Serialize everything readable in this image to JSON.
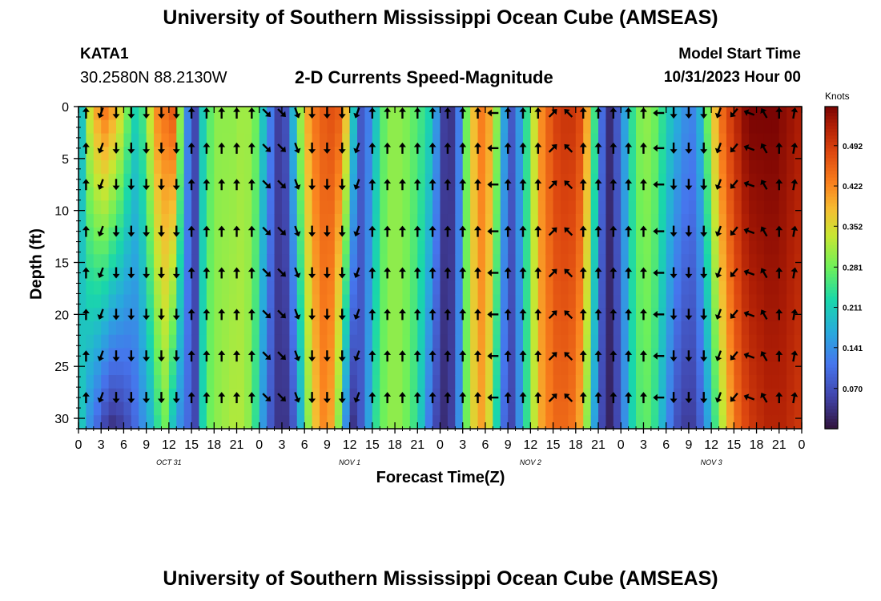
{
  "header": {
    "title": "University of Southern Mississippi Ocean Cube (AMSEAS)",
    "station": "KATA1",
    "coordinates": "30.2580N  88.2130W",
    "subtitle": "2-D Currents Speed-Magnitude",
    "model_start_label": "Model Start Time",
    "model_start_value": "10/31/2023 Hour 00"
  },
  "footer": {
    "title": "University of Southern Mississippi Ocean Cube (AMSEAS)"
  },
  "chart_data": {
    "type": "heatmap",
    "title": "2-D Currents Speed-Magnitude",
    "xlabel": "Forecast Time(Z)",
    "ylabel": "Depth (ft)",
    "xlim": [
      0,
      96
    ],
    "ylim": [
      31,
      0
    ],
    "x_tick_values": [
      0,
      3,
      6,
      9,
      12,
      15,
      18,
      21,
      24,
      27,
      30,
      33,
      36,
      39,
      42,
      45,
      48,
      51,
      54,
      57,
      60,
      63,
      66,
      69,
      72,
      75,
      78,
      81,
      84,
      87,
      90,
      93,
      96
    ],
    "x_tick_labels": [
      "0",
      "3",
      "6",
      "9",
      "12",
      "15",
      "18",
      "21",
      "0",
      "3",
      "6",
      "9",
      "12",
      "15",
      "18",
      "21",
      "0",
      "3",
      "6",
      "9",
      "12",
      "15",
      "18",
      "21",
      "0",
      "3",
      "6",
      "9",
      "12",
      "15",
      "18",
      "21",
      "0"
    ],
    "day_labels": [
      {
        "text": "OCT 31",
        "hour": 12
      },
      {
        "text": "NOV 1",
        "hour": 36
      },
      {
        "text": "NOV 2",
        "hour": 60
      },
      {
        "text": "NOV 3",
        "hour": 84
      }
    ],
    "y_ticks": [
      0,
      5,
      10,
      15,
      20,
      25,
      30
    ],
    "colorbar": {
      "units": "Knots",
      "range": [
        0.0,
        0.56
      ],
      "tick_values": [
        0.07,
        0.141,
        0.211,
        0.281,
        0.352,
        0.422,
        0.492
      ],
      "tick_labels": [
        "0.070",
        "0.141",
        "0.211",
        "0.281",
        "0.352",
        "0.422",
        "0.492"
      ]
    },
    "speed_profile": {
      "hours": [
        0,
        1,
        2,
        3,
        4,
        5,
        6,
        7,
        8,
        9,
        10,
        11,
        12,
        13,
        14,
        15,
        16,
        17,
        18,
        19,
        20,
        21,
        22,
        23,
        24,
        25,
        26,
        27,
        28,
        29,
        30,
        31,
        32,
        33,
        34,
        35,
        36,
        37,
        38,
        39,
        40,
        41,
        42,
        43,
        44,
        45,
        46,
        47,
        48,
        49,
        50,
        51,
        52,
        53,
        54,
        55,
        56,
        57,
        58,
        59,
        60,
        61,
        62,
        63,
        64,
        65,
        66,
        67,
        68,
        69,
        70,
        71,
        72,
        73,
        74,
        75,
        76,
        77,
        78,
        79,
        80,
        81,
        82,
        83,
        84,
        85,
        86,
        87,
        88,
        89,
        90,
        91,
        92,
        93,
        94,
        95,
        96
      ],
      "surface_knots": [
        0.2,
        0.34,
        0.4,
        0.43,
        0.4,
        0.35,
        0.28,
        0.22,
        0.25,
        0.34,
        0.42,
        0.44,
        0.46,
        0.3,
        0.13,
        0.06,
        0.21,
        0.27,
        0.3,
        0.3,
        0.3,
        0.31,
        0.31,
        0.28,
        0.2,
        0.12,
        0.05,
        0.07,
        0.18,
        0.31,
        0.4,
        0.44,
        0.46,
        0.47,
        0.46,
        0.38,
        0.2,
        0.08,
        0.12,
        0.2,
        0.27,
        0.3,
        0.3,
        0.29,
        0.27,
        0.25,
        0.22,
        0.15,
        0.05,
        0.04,
        0.12,
        0.28,
        0.38,
        0.43,
        0.4,
        0.3,
        0.16,
        0.08,
        0.15,
        0.24,
        0.34,
        0.42,
        0.46,
        0.49,
        0.5,
        0.5,
        0.48,
        0.4,
        0.25,
        0.1,
        0.03,
        0.08,
        0.16,
        0.24,
        0.29,
        0.3,
        0.28,
        0.24,
        0.2,
        0.17,
        0.14,
        0.13,
        0.18,
        0.28,
        0.38,
        0.45,
        0.49,
        0.52,
        0.55,
        0.56,
        0.56,
        0.56,
        0.56,
        0.55,
        0.54,
        0.53,
        0.52
      ],
      "deep_knots": [
        0.2,
        0.14,
        0.1,
        0.06,
        0.04,
        0.05,
        0.07,
        0.1,
        0.14,
        0.18,
        0.24,
        0.28,
        0.2,
        0.14,
        0.1,
        0.06,
        0.22,
        0.28,
        0.3,
        0.31,
        0.32,
        0.32,
        0.3,
        0.24,
        0.15,
        0.08,
        0.04,
        0.04,
        0.08,
        0.18,
        0.3,
        0.38,
        0.42,
        0.4,
        0.3,
        0.14,
        0.04,
        0.08,
        0.16,
        0.24,
        0.28,
        0.3,
        0.3,
        0.28,
        0.25,
        0.2,
        0.12,
        0.06,
        0.03,
        0.05,
        0.14,
        0.28,
        0.36,
        0.4,
        0.35,
        0.22,
        0.1,
        0.06,
        0.14,
        0.24,
        0.33,
        0.4,
        0.43,
        0.45,
        0.45,
        0.44,
        0.4,
        0.3,
        0.16,
        0.06,
        0.02,
        0.06,
        0.14,
        0.22,
        0.26,
        0.27,
        0.24,
        0.18,
        0.12,
        0.07,
        0.05,
        0.05,
        0.09,
        0.16,
        0.25,
        0.33,
        0.4,
        0.45,
        0.48,
        0.5,
        0.51,
        0.52,
        0.52,
        0.52,
        0.51,
        0.5,
        0.5
      ]
    },
    "vector_hours": [
      1,
      3,
      5,
      7,
      9,
      11,
      13,
      15,
      17,
      19,
      21,
      23,
      25,
      27,
      29,
      31,
      33,
      35,
      37,
      39,
      41,
      43,
      45,
      47,
      49,
      51,
      53,
      55,
      57,
      59,
      61,
      63,
      65,
      67,
      69,
      71,
      73,
      75,
      77,
      79,
      81,
      83,
      85,
      87,
      89,
      91,
      93,
      95
    ],
    "vector_depths": [
      0,
      4,
      7.5,
      12,
      16,
      20,
      24,
      28
    ],
    "vector_directions": {
      "hours": [
        1,
        3,
        5,
        7,
        9,
        11,
        13,
        15,
        17,
        19,
        21,
        23,
        25,
        27,
        29,
        31,
        33,
        35,
        37,
        39,
        41,
        43,
        45,
        47,
        49,
        51,
        53,
        55,
        57,
        59,
        61,
        63,
        65,
        67,
        69,
        71,
        73,
        75,
        77,
        79,
        81,
        83,
        85,
        87,
        89,
        91,
        93,
        95
      ],
      "bearing_deg": [
        0,
        200,
        180,
        180,
        180,
        180,
        180,
        0,
        0,
        0,
        0,
        0,
        135,
        135,
        160,
        180,
        180,
        180,
        200,
        0,
        0,
        0,
        0,
        0,
        0,
        0,
        0,
        270,
        0,
        0,
        0,
        45,
        315,
        0,
        0,
        0,
        0,
        0,
        270,
        180,
        180,
        180,
        200,
        220,
        290,
        330,
        0,
        10
      ]
    }
  }
}
